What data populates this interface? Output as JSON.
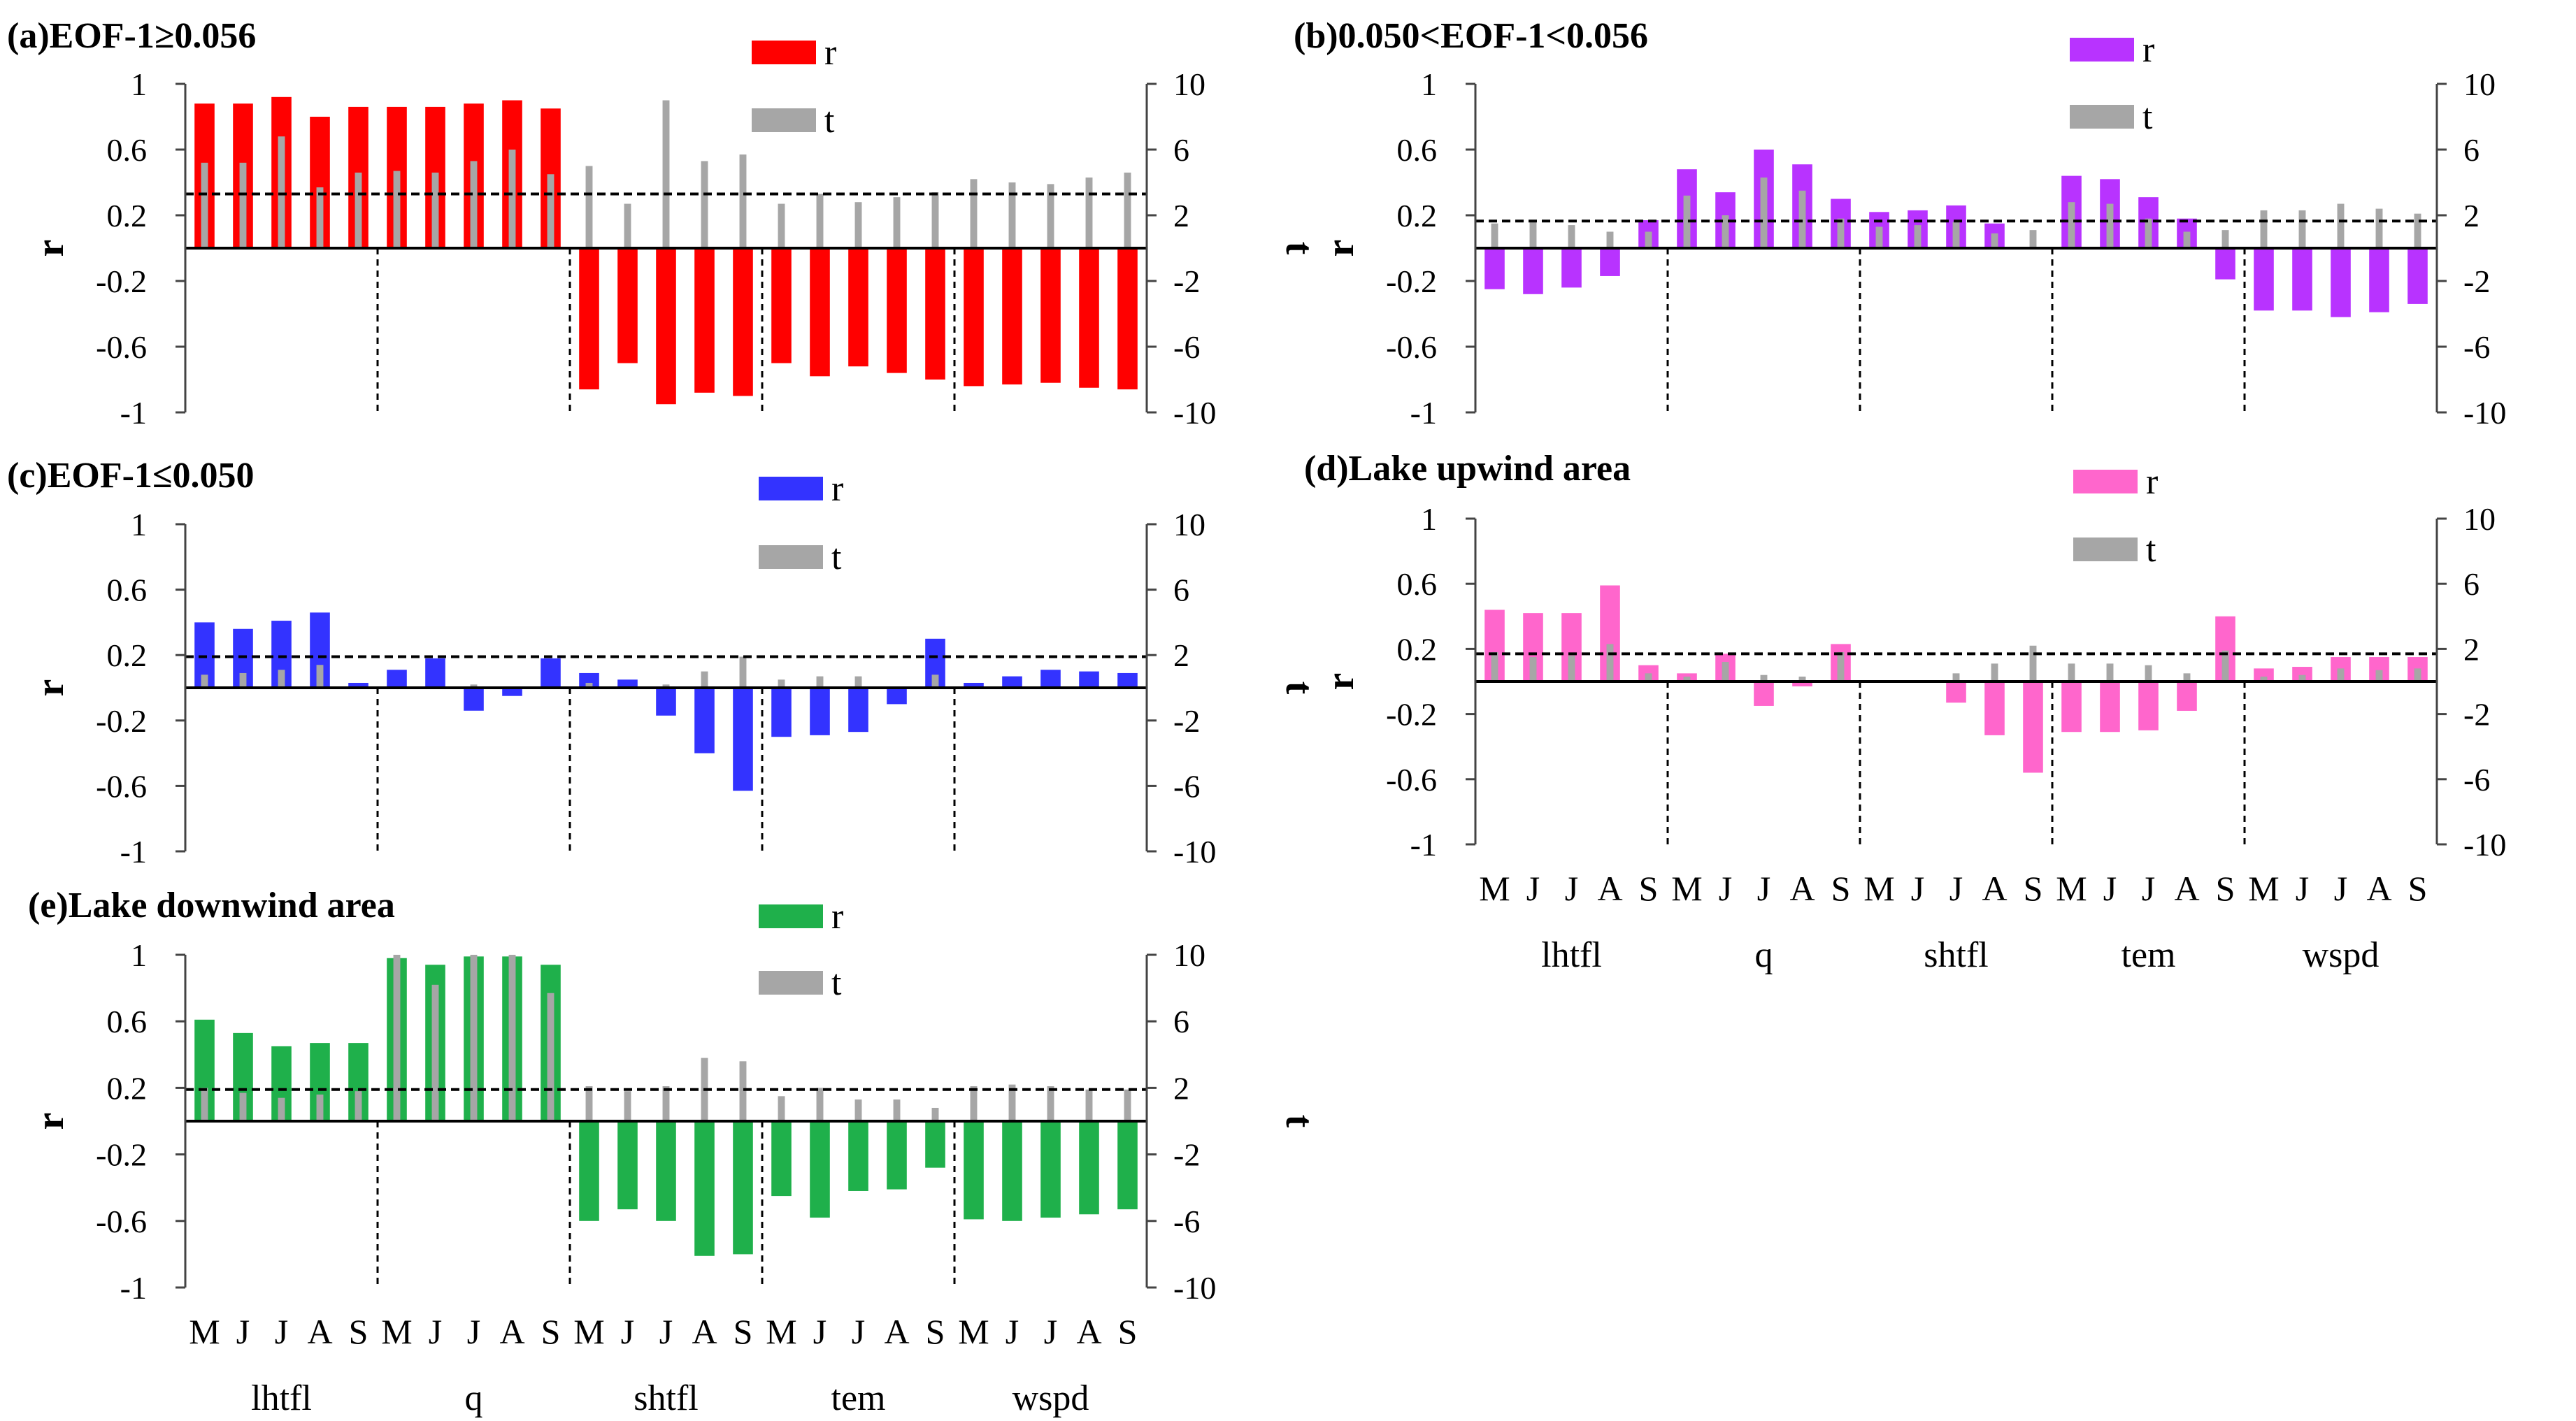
{
  "chart_data": {
    "type": "bar",
    "months": [
      "M",
      "J",
      "J",
      "A",
      "S"
    ],
    "groups": [
      "lhtfl",
      "q",
      "shtfl",
      "tem",
      "wspd"
    ],
    "threshold_t": 3.3,
    "legend": {
      "r": "r",
      "t": "t"
    },
    "panels": [
      {
        "title": "(a)EOF-1≥0.056",
        "color": "#ff0000",
        "ylabel_left": "r",
        "ylabel_right": "t",
        "ylim_left": [
          -1,
          1
        ],
        "ylim_right": [
          -10,
          10
        ],
        "yticks_left": [
          "1",
          "0.6",
          "0.2",
          "-0.2",
          "-0.6",
          "-1"
        ],
        "yticks_right": [
          "10",
          "6",
          "2",
          "-2",
          "-6",
          "-10"
        ],
        "threshold_t": 3.3,
        "show_xlabels": false,
        "r": [
          0.88,
          0.88,
          0.92,
          0.8,
          0.86,
          0.86,
          0.86,
          0.88,
          0.9,
          0.85,
          -0.86,
          -0.7,
          -0.95,
          -0.88,
          -0.9,
          -0.7,
          -0.78,
          -0.72,
          -0.76,
          -0.8,
          -0.84,
          -0.83,
          -0.82,
          -0.85,
          -0.86
        ],
        "t": [
          5.2,
          5.2,
          6.8,
          3.7,
          4.6,
          4.7,
          4.6,
          5.3,
          6.0,
          4.5,
          5.0,
          2.7,
          9.0,
          5.3,
          5.7,
          2.7,
          3.3,
          2.8,
          3.1,
          3.4,
          4.2,
          4.0,
          3.9,
          4.3,
          4.6
        ]
      },
      {
        "title": "(b)0.050<EOF-1<0.056",
        "color": "#b833ff",
        "ylabel_left": "r",
        "ylabel_right": "t",
        "ylim_left": [
          -1,
          1
        ],
        "ylim_right": [
          -10,
          10
        ],
        "yticks_left": [
          "1",
          "0.6",
          "0.2",
          "-0.2",
          "-0.6",
          "-1"
        ],
        "yticks_right": [
          "10",
          "6",
          "2",
          "-2",
          "-6",
          "-10"
        ],
        "threshold_t": 1.65,
        "show_xlabels": false,
        "r": [
          -0.25,
          -0.28,
          -0.24,
          -0.17,
          0.17,
          0.48,
          0.34,
          0.6,
          0.51,
          0.3,
          0.22,
          0.23,
          0.26,
          0.15,
          0.0,
          0.44,
          0.42,
          0.31,
          0.18,
          -0.19,
          -0.38,
          -0.38,
          -0.42,
          -0.39,
          -0.34
        ],
        "t": [
          1.5,
          1.6,
          1.4,
          1.0,
          1.0,
          3.2,
          2.0,
          4.3,
          3.5,
          1.8,
          1.3,
          1.4,
          1.6,
          0.9,
          1.1,
          2.8,
          2.7,
          1.8,
          1.0,
          1.1,
          2.3,
          2.3,
          2.7,
          2.4,
          2.1
        ]
      },
      {
        "title": "(c)EOF-1≤0.050",
        "color": "#3333ff",
        "ylabel_left": "r",
        "ylabel_right": "t",
        "ylim_left": [
          -1,
          1
        ],
        "ylim_right": [
          -10,
          10
        ],
        "yticks_left": [
          "1",
          "0.6",
          "0.2",
          "-0.2",
          "-0.6",
          "-1"
        ],
        "yticks_right": [
          "10",
          "6",
          "2",
          "-2",
          "-6",
          "-10"
        ],
        "threshold_t": 1.9,
        "show_xlabels": false,
        "r": [
          0.4,
          0.36,
          0.41,
          0.46,
          0.03,
          0.11,
          0.18,
          -0.14,
          -0.05,
          0.18,
          0.09,
          0.05,
          -0.17,
          -0.4,
          -0.63,
          -0.3,
          -0.29,
          -0.27,
          -0.1,
          0.3,
          0.03,
          0.07,
          0.11,
          0.1,
          0.09
        ],
        "t": [
          0.8,
          0.9,
          1.1,
          1.4,
          0.0,
          0.0,
          0.0,
          0.2,
          0.0,
          0.0,
          0.3,
          0.0,
          0.2,
          1.0,
          1.9,
          0.5,
          0.7,
          0.7,
          0.0,
          0.8,
          0.0,
          0.0,
          0.0,
          0.0,
          0.0
        ]
      },
      {
        "title": "(d)Lake upwind area",
        "color": "#ff66cc",
        "ylabel_left": "r",
        "ylabel_right": "t",
        "ylim_left": [
          -1,
          1
        ],
        "ylim_right": [
          -10,
          10
        ],
        "yticks_left": [
          "1",
          "0.6",
          "0.2",
          "-0.2",
          "-0.6",
          "-1"
        ],
        "yticks_right": [
          "10",
          "6",
          "2",
          "-2",
          "-6",
          "-10"
        ],
        "threshold_t": 1.7,
        "show_xlabels": true,
        "r": [
          0.44,
          0.42,
          0.42,
          0.59,
          0.1,
          0.05,
          0.17,
          -0.15,
          -0.03,
          0.23,
          0.0,
          0.0,
          -0.13,
          -0.33,
          -0.56,
          -0.31,
          -0.31,
          -0.3,
          -0.18,
          0.4,
          0.08,
          0.09,
          0.15,
          0.15,
          0.15
        ],
        "t": [
          1.8,
          1.5,
          1.6,
          2.3,
          0.5,
          0.3,
          1.2,
          0.4,
          0.3,
          1.8,
          0.0,
          0.0,
          0.5,
          1.1,
          2.2,
          1.1,
          1.1,
          1.0,
          0.5,
          1.9,
          0.3,
          0.4,
          0.8,
          0.7,
          0.8
        ]
      },
      {
        "title": "(e)Lake downwind area",
        "color": "#1fb04b",
        "ylabel_left": "r",
        "ylabel_right": "t",
        "ylim_left": [
          -1,
          1
        ],
        "ylim_right": [
          -10,
          10
        ],
        "yticks_left": [
          "1",
          "0.6",
          "0.2",
          "-0.2",
          "-0.6",
          "-1"
        ],
        "yticks_right": [
          "10",
          "6",
          "2",
          "-2",
          "-6",
          "-10"
        ],
        "threshold_t": 1.9,
        "show_xlabels": true,
        "r": [
          0.61,
          0.53,
          0.45,
          0.47,
          0.47,
          0.98,
          0.94,
          0.99,
          0.99,
          0.94,
          -0.6,
          -0.53,
          -0.6,
          -0.81,
          -0.8,
          -0.45,
          -0.58,
          -0.42,
          -0.41,
          -0.28,
          -0.59,
          -0.6,
          -0.58,
          -0.56,
          -0.53
        ],
        "t": [
          2.0,
          1.7,
          1.4,
          1.6,
          1.8,
          10.0,
          8.2,
          10.0,
          10.0,
          7.7,
          2.1,
          1.8,
          2.1,
          3.8,
          3.6,
          1.5,
          2.0,
          1.3,
          1.3,
          0.8,
          2.1,
          2.2,
          2.1,
          1.9,
          1.9
        ]
      }
    ]
  }
}
